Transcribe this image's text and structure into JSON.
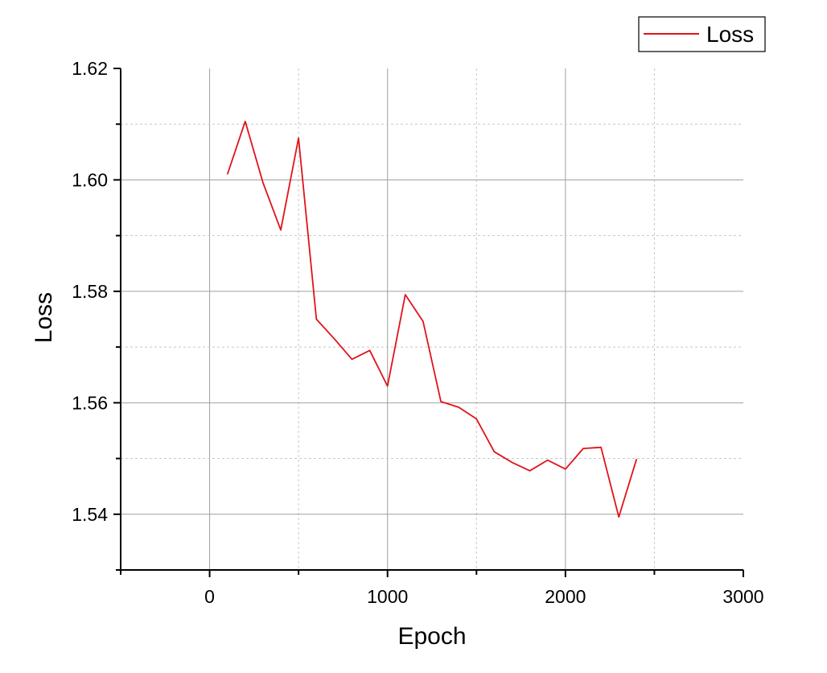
{
  "chart_data": {
    "type": "line",
    "title": "",
    "xlabel": "Epoch",
    "ylabel": "Loss",
    "xlim": [
      -500,
      3000
    ],
    "ylim": [
      1.53,
      1.62
    ],
    "x_ticks": [
      0,
      1000,
      2000,
      3000
    ],
    "x_tick_labels": [
      "0",
      "1000",
      "2000",
      "3000"
    ],
    "y_ticks": [
      1.54,
      1.56,
      1.58,
      1.6,
      1.62
    ],
    "y_tick_labels": [
      "1.54",
      "1.56",
      "1.58",
      "1.60",
      "1.62"
    ],
    "grid": true,
    "legend_position": "top-right",
    "series": [
      {
        "name": "Loss",
        "color": "#e0131b",
        "x": [
          100,
          200,
          300,
          400,
          500,
          600,
          700,
          800,
          900,
          1000,
          1100,
          1200,
          1300,
          1400,
          1500,
          1600,
          1700,
          1800,
          1900,
          2000,
          2100,
          2200,
          2300,
          2400
        ],
        "y": [
          1.601,
          1.6105,
          1.5995,
          1.591,
          1.6075,
          1.575,
          1.5715,
          1.5678,
          1.5694,
          1.563,
          1.5794,
          1.5746,
          1.5602,
          1.5592,
          1.5571,
          1.5512,
          1.5493,
          1.5478,
          1.5497,
          1.5481,
          1.5518,
          1.552,
          1.5395,
          1.5499
        ]
      }
    ]
  }
}
